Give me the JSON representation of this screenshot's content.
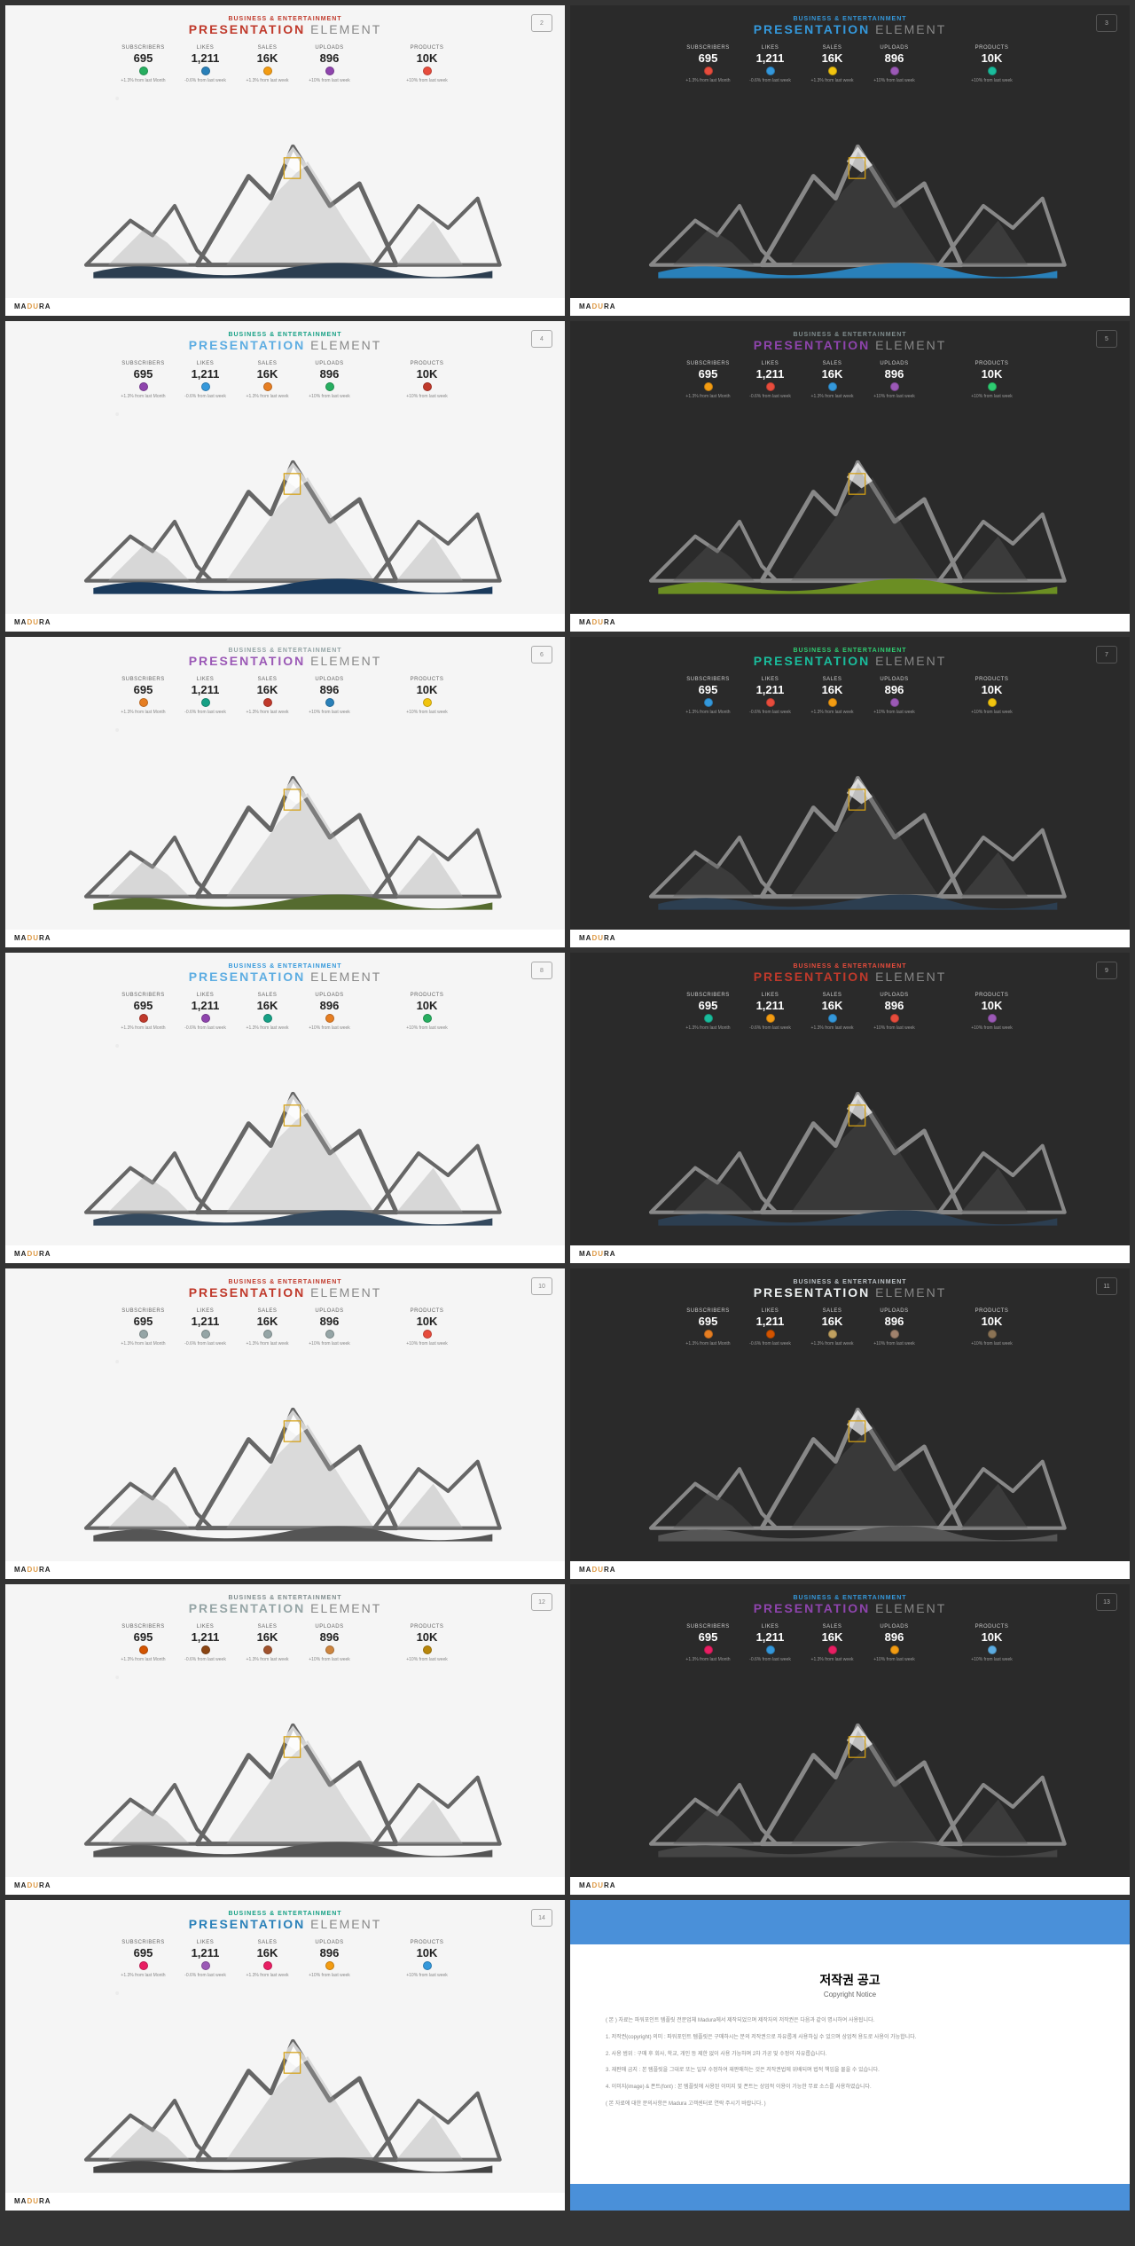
{
  "common": {
    "subtitle": "BUSINESS & ENTERTAINMENT",
    "title_main": "PRESENTATION",
    "title_elem": " ELEMENT",
    "brand_ma": "MA",
    "brand_du": "DU",
    "brand_ra": "RA",
    "stats": [
      {
        "label": "SUBSCRIBERS",
        "value": "695",
        "change": "+1.3% from last Month"
      },
      {
        "label": "LIKES",
        "value": "1,211",
        "change": "-0.6% from last week"
      },
      {
        "label": "SALES",
        "value": "16K",
        "change": "+1.3% from last week"
      },
      {
        "label": "UPLOADS",
        "value": "896",
        "change": "+10% from last week"
      },
      {
        "label": "PRODUCTS",
        "value": "10K",
        "change": "+10% from last week"
      }
    ]
  },
  "slides": [
    {
      "theme": "light",
      "page": "2",
      "sub_color": "#c0392b",
      "title_color": "#c0392b",
      "dots": [
        "#27ae60",
        "#2980b9",
        "#f39c12",
        "#8e44ad",
        "#e74c3c"
      ],
      "wave": "#2c3e50"
    },
    {
      "theme": "dark",
      "page": "3",
      "sub_color": "#3498db",
      "title_color": "#3498db",
      "dots": [
        "#e74c3c",
        "#3498db",
        "#f1c40f",
        "#9b59b6",
        "#1abc9c"
      ],
      "wave": "#2980b9"
    },
    {
      "theme": "light",
      "page": "4",
      "sub_color": "#16a085",
      "title_color": "#5dade2",
      "dots": [
        "#8e44ad",
        "#3498db",
        "#e67e22",
        "#27ae60",
        "#c0392b"
      ],
      "wave": "#1a3a5c"
    },
    {
      "theme": "dark",
      "page": "5",
      "sub_color": "#7f8c8d",
      "title_color": "#8e44ad",
      "dots": [
        "#f39c12",
        "#e74c3c",
        "#3498db",
        "#9b59b6",
        "#2ecc71"
      ],
      "wave": "#6b8e23"
    },
    {
      "theme": "light",
      "page": "6",
      "sub_color": "#95a5a6",
      "title_color": "#9b59b6",
      "dots": [
        "#e67e22",
        "#16a085",
        "#c0392b",
        "#2980b9",
        "#f1c40f"
      ],
      "wave": "#556b2f"
    },
    {
      "theme": "dark",
      "page": "7",
      "sub_color": "#2ecc71",
      "title_color": "#1abc9c",
      "dots": [
        "#3498db",
        "#e74c3c",
        "#f39c12",
        "#9b59b6",
        "#f1c40f"
      ],
      "wave": "#2c3e50"
    },
    {
      "theme": "light",
      "page": "8",
      "sub_color": "#3498db",
      "title_color": "#5dade2",
      "dots": [
        "#c0392b",
        "#8e44ad",
        "#16a085",
        "#e67e22",
        "#27ae60"
      ],
      "wave": "#34495e"
    },
    {
      "theme": "dark",
      "page": "9",
      "sub_color": "#e74c3c",
      "title_color": "#c0392b",
      "dots": [
        "#1abc9c",
        "#f39c12",
        "#3498db",
        "#e74c3c",
        "#9b59b6"
      ],
      "wave": "#2c3e50"
    },
    {
      "theme": "light",
      "page": "10",
      "sub_color": "#c0392b",
      "title_color": "#c0392b",
      "dots": [
        "#95a5a6",
        "#95a5a6",
        "#95a5a6",
        "#95a5a6",
        "#e74c3c"
      ],
      "wave": "#555"
    },
    {
      "theme": "dark",
      "page": "11",
      "sub_color": "#bdc3c7",
      "title_color": "#ecf0f1",
      "dots": [
        "#e67e22",
        "#d35400",
        "#c0a060",
        "#a0826d",
        "#8b7355"
      ],
      "wave": "#555"
    },
    {
      "theme": "light",
      "page": "12",
      "sub_color": "#7f8c8d",
      "title_color": "#95a5a6",
      "dots": [
        "#d35400",
        "#8b4513",
        "#a0522d",
        "#cd853f",
        "#b8860b"
      ],
      "wave": "#555"
    },
    {
      "theme": "dark",
      "page": "13",
      "sub_color": "#3498db",
      "title_color": "#8e44ad",
      "dots": [
        "#e91e63",
        "#3498db",
        "#e91e63",
        "#f39c12",
        "#5dade2"
      ],
      "wave": "#444"
    },
    {
      "theme": "light",
      "page": "14",
      "sub_color": "#16a085",
      "title_color": "#2980b9",
      "dots": [
        "#e91e63",
        "#9b59b6",
        "#e91e63",
        "#f39c12",
        "#3498db"
      ],
      "wave": "#444"
    }
  ],
  "copyright": {
    "title": "저작권 공고",
    "subtitle": "Copyright Notice",
    "p1": "( 본 ) 자료는 파워포인트 템플릿 전문업체 Madura에서 제작되었으며 제작자의 저작권은 다음과 같이 명시하여 사용됩니다.",
    "p2": "1. 저작권(copyright) 의미 : 파워포인트 템플릿은 구매하시는 분의 저작권으로 자유롭게 사용하실 수 있으며 상업적 용도로 사용이 가능합니다.",
    "p3": "2. 사용 범위 : 구매 후 회사, 학교, 개인 등 제한 없이 사용 가능하며 2차 가공 및 수정이 자유롭습니다.",
    "p4": "3. 재판매 금지 : 본 템플릿을 그대로 또는 일부 수정하여 재판매하는 것은 저작권법에 위배되며 법적 책임을 물을 수 있습니다.",
    "p5": "4. 이미지(image) & 폰트(font) : 본 템플릿에 사용된 이미지 및 폰트는 상업적 이용이 가능한 무료 소스를 사용하였습니다.",
    "p6": "( 본 자료에 대한 문의사항은 Madura 고객센터로 연락 주시기 바랍니다. )"
  }
}
